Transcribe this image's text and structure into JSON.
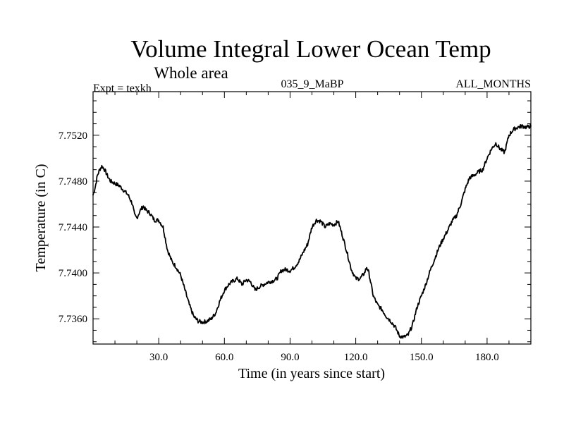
{
  "chart_data": {
    "type": "line",
    "title": "Volume Integral Lower Ocean Temp",
    "subtitle": "Whole area",
    "experiment": "Expt = texkh",
    "run_label": "035_9_MaBP",
    "period": "ALL_MONTHS",
    "xlabel": "Time (in years since start)",
    "ylabel": "Temperature (in C)",
    "xlim": [
      0,
      200
    ],
    "ylim": [
      7.7338,
      7.7558
    ],
    "xticks": [
      30,
      60,
      90,
      120,
      150,
      180
    ],
    "xtick_labels": [
      "30.0",
      "60.0",
      "90.0",
      "120.0",
      "150.0",
      "180.0"
    ],
    "yticks": [
      7.736,
      7.74,
      7.744,
      7.748,
      7.752
    ],
    "ytick_labels": [
      "7.7360",
      "7.7400",
      "7.7440",
      "7.7480",
      "7.7520"
    ],
    "grid": false,
    "series": [
      {
        "name": "Volume Integral Lower Ocean Temp",
        "x": [
          0,
          1,
          2,
          3,
          4,
          5,
          6,
          7,
          8,
          10,
          12,
          14,
          16,
          18,
          19,
          20,
          21,
          22,
          23,
          24,
          26,
          28,
          30,
          32,
          34,
          36,
          38,
          40,
          42,
          44,
          46,
          48,
          50,
          52,
          54,
          56,
          58,
          60,
          62,
          64,
          66,
          68,
          70,
          72,
          74,
          76,
          78,
          80,
          82,
          84,
          86,
          88,
          90,
          92,
          94,
          96,
          98,
          100,
          102,
          104,
          106,
          108,
          110,
          112,
          114,
          116,
          118,
          120,
          122,
          124,
          125,
          126,
          128,
          130,
          132,
          134,
          136,
          138,
          140,
          142,
          144,
          146,
          148,
          150,
          152,
          154,
          156,
          158,
          160,
          162,
          164,
          166,
          168,
          170,
          172,
          174,
          176,
          178,
          180,
          182,
          184,
          186,
          188,
          190,
          192,
          194,
          196,
          198,
          200
        ],
        "y": [
          7.7468,
          7.7475,
          7.7485,
          7.749,
          7.7493,
          7.7491,
          7.7487,
          7.7483,
          7.748,
          7.7478,
          7.7476,
          7.7472,
          7.7468,
          7.746,
          7.745,
          7.7448,
          7.7452,
          7.7456,
          7.7458,
          7.7455,
          7.7452,
          7.7446,
          7.7446,
          7.744,
          7.742,
          7.741,
          7.7405,
          7.7398,
          7.7385,
          7.7372,
          7.7362,
          7.7358,
          7.7357,
          7.7358,
          7.736,
          7.7365,
          7.7376,
          7.7385,
          7.739,
          7.7393,
          7.7395,
          7.739,
          7.7394,
          7.7392,
          7.7385,
          7.7388,
          7.739,
          7.7392,
          7.7393,
          7.7395,
          7.7402,
          7.7403,
          7.7402,
          7.7405,
          7.741,
          7.7418,
          7.7425,
          7.744,
          7.7446,
          7.7445,
          7.744,
          7.7443,
          7.7442,
          7.7445,
          7.7432,
          7.7418,
          7.7403,
          7.7395,
          7.7395,
          7.74,
          7.7405,
          7.74,
          7.738,
          7.7372,
          7.7368,
          7.7362,
          7.7358,
          7.7353,
          7.7345,
          7.7344,
          7.7346,
          7.7355,
          7.737,
          7.738,
          7.739,
          7.7402,
          7.7412,
          7.7422,
          7.743,
          7.7437,
          7.7445,
          7.745,
          7.746,
          7.7473,
          7.7483,
          7.7485,
          7.7488,
          7.749,
          7.75,
          7.7508,
          7.7513,
          7.7508,
          7.7505,
          7.752,
          7.7525,
          7.7527,
          7.7528,
          7.7527,
          7.7528
        ]
      }
    ]
  }
}
